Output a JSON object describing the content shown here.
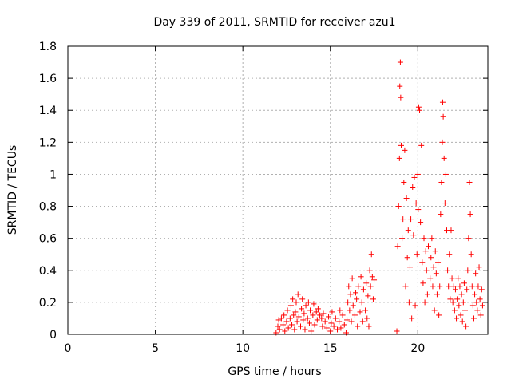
{
  "chart_data": {
    "type": "scatter",
    "title": "Day 339 of 2011, SRMTID for receiver azu1",
    "xlabel": "GPS time / hours",
    "ylabel": "SRMTID / TECUs",
    "xlim": [
      0,
      24
    ],
    "ylim": [
      0,
      1.8
    ],
    "xticks": [
      0,
      5,
      10,
      15,
      20
    ],
    "yticks": [
      0,
      0.2,
      0.4,
      0.6,
      0.8,
      1,
      1.2,
      1.4,
      1.6,
      1.8
    ],
    "ytick_labels": [
      "0",
      "0.2",
      "0.4",
      "0.6",
      "0.8",
      "1",
      "1.2",
      "1.4",
      "1.6",
      "1.8"
    ],
    "grid": true,
    "marker": "+",
    "color": "#ff0000",
    "series": [
      {
        "name": "SRMTID",
        "points": [
          [
            11.9,
            0.01
          ],
          [
            12.0,
            0.05
          ],
          [
            12.05,
            0.09
          ],
          [
            12.1,
            0.03
          ],
          [
            12.2,
            0.1
          ],
          [
            12.3,
            0.06
          ],
          [
            12.35,
            0.12
          ],
          [
            12.4,
            0.02
          ],
          [
            12.5,
            0.08
          ],
          [
            12.55,
            0.15
          ],
          [
            12.6,
            0.04
          ],
          [
            12.7,
            0.1
          ],
          [
            12.75,
            0.18
          ],
          [
            12.8,
            0.06
          ],
          [
            12.85,
            0.22
          ],
          [
            12.9,
            0.12
          ],
          [
            12.95,
            0.03
          ],
          [
            13.0,
            0.14
          ],
          [
            13.05,
            0.2
          ],
          [
            13.1,
            0.08
          ],
          [
            13.15,
            0.25
          ],
          [
            13.2,
            0.11
          ],
          [
            13.3,
            0.05
          ],
          [
            13.35,
            0.16
          ],
          [
            13.4,
            0.22
          ],
          [
            13.45,
            0.09
          ],
          [
            13.5,
            0.13
          ],
          [
            13.55,
            0.03
          ],
          [
            13.6,
            0.18
          ],
          [
            13.7,
            0.1
          ],
          [
            13.75,
            0.2
          ],
          [
            13.8,
            0.07
          ],
          [
            13.85,
            0.15
          ],
          [
            13.9,
            0.02
          ],
          [
            14.0,
            0.12
          ],
          [
            14.05,
            0.19
          ],
          [
            14.1,
            0.06
          ],
          [
            14.2,
            0.14
          ],
          [
            14.25,
            0.09
          ],
          [
            14.3,
            0.16
          ],
          [
            14.4,
            0.12
          ],
          [
            14.5,
            0.1
          ],
          [
            14.55,
            0.05
          ],
          [
            14.6,
            0.13
          ],
          [
            14.7,
            0.08
          ],
          [
            14.8,
            0.04
          ],
          [
            14.9,
            0.11
          ],
          [
            15.0,
            0.02
          ],
          [
            15.05,
            0.07
          ],
          [
            15.1,
            0.14
          ],
          [
            15.2,
            0.05
          ],
          [
            15.3,
            0.1
          ],
          [
            15.4,
            0.03
          ],
          [
            15.5,
            0.08
          ],
          [
            15.55,
            0.15
          ],
          [
            15.6,
            0.04
          ],
          [
            15.7,
            0.12
          ],
          [
            15.8,
            0.06
          ],
          [
            15.9,
            0.01
          ],
          [
            15.95,
            0.09
          ],
          [
            16.0,
            0.2
          ],
          [
            16.05,
            0.3
          ],
          [
            16.1,
            0.15
          ],
          [
            16.15,
            0.25
          ],
          [
            16.2,
            0.08
          ],
          [
            16.25,
            0.35
          ],
          [
            16.3,
            0.18
          ],
          [
            16.4,
            0.12
          ],
          [
            16.45,
            0.26
          ],
          [
            16.5,
            0.22
          ],
          [
            16.55,
            0.05
          ],
          [
            16.6,
            0.3
          ],
          [
            16.7,
            0.14
          ],
          [
            16.75,
            0.36
          ],
          [
            16.8,
            0.2
          ],
          [
            16.85,
            0.08
          ],
          [
            16.9,
            0.28
          ],
          [
            17.0,
            0.15
          ],
          [
            17.05,
            0.32
          ],
          [
            17.1,
            0.1
          ],
          [
            17.15,
            0.24
          ],
          [
            17.2,
            0.05
          ],
          [
            17.25,
            0.4
          ],
          [
            17.3,
            0.3
          ],
          [
            17.35,
            0.5
          ],
          [
            17.4,
            0.36
          ],
          [
            17.45,
            0.22
          ],
          [
            17.5,
            0.34
          ],
          [
            18.8,
            0.02
          ],
          [
            18.85,
            0.55
          ],
          [
            18.9,
            0.8
          ],
          [
            18.95,
            1.1
          ],
          [
            18.97,
            1.55
          ],
          [
            19.0,
            1.7
          ],
          [
            19.02,
            1.48
          ],
          [
            19.05,
            1.18
          ],
          [
            19.1,
            0.6
          ],
          [
            19.15,
            0.72
          ],
          [
            19.2,
            0.95
          ],
          [
            19.25,
            1.15
          ],
          [
            19.3,
            0.3
          ],
          [
            19.35,
            0.85
          ],
          [
            19.4,
            0.48
          ],
          [
            19.45,
            0.65
          ],
          [
            19.5,
            0.2
          ],
          [
            19.55,
            0.42
          ],
          [
            19.6,
            0.72
          ],
          [
            19.65,
            0.1
          ],
          [
            19.7,
            0.92
          ],
          [
            19.75,
            0.62
          ],
          [
            19.8,
            0.98
          ],
          [
            19.85,
            0.18
          ],
          [
            19.9,
            0.82
          ],
          [
            19.95,
            0.5
          ],
          [
            20.0,
            1.0
          ],
          [
            20.02,
            0.78
          ],
          [
            20.05,
            1.42
          ],
          [
            20.1,
            1.4
          ],
          [
            20.15,
            0.7
          ],
          [
            20.2,
            1.18
          ],
          [
            20.25,
            0.45
          ],
          [
            20.3,
            0.32
          ],
          [
            20.35,
            0.6
          ],
          [
            20.4,
            0.2
          ],
          [
            20.45,
            0.52
          ],
          [
            20.5,
            0.4
          ],
          [
            20.55,
            0.25
          ],
          [
            20.6,
            0.55
          ],
          [
            20.7,
            0.35
          ],
          [
            20.75,
            0.48
          ],
          [
            20.8,
            0.6
          ],
          [
            20.85,
            0.3
          ],
          [
            20.9,
            0.42
          ],
          [
            20.95,
            0.15
          ],
          [
            21.0,
            0.52
          ],
          [
            21.05,
            0.38
          ],
          [
            21.1,
            0.25
          ],
          [
            21.15,
            0.45
          ],
          [
            21.2,
            0.12
          ],
          [
            21.25,
            0.3
          ],
          [
            21.3,
            0.75
          ],
          [
            21.35,
            0.95
          ],
          [
            21.4,
            1.2
          ],
          [
            21.42,
            1.45
          ],
          [
            21.45,
            1.36
          ],
          [
            21.5,
            1.1
          ],
          [
            21.55,
            0.82
          ],
          [
            21.6,
            1.0
          ],
          [
            21.65,
            0.65
          ],
          [
            21.7,
            0.4
          ],
          [
            21.75,
            0.3
          ],
          [
            21.8,
            0.5
          ],
          [
            21.85,
            0.22
          ],
          [
            21.9,
            0.65
          ],
          [
            21.95,
            0.35
          ],
          [
            22.0,
            0.2
          ],
          [
            22.05,
            0.3
          ],
          [
            22.1,
            0.15
          ],
          [
            22.15,
            0.28
          ],
          [
            22.2,
            0.1
          ],
          [
            22.25,
            0.22
          ],
          [
            22.3,
            0.35
          ],
          [
            22.35,
            0.18
          ],
          [
            22.4,
            0.3
          ],
          [
            22.45,
            0.12
          ],
          [
            22.5,
            0.25
          ],
          [
            22.55,
            0.08
          ],
          [
            22.6,
            0.2
          ],
          [
            22.65,
            0.32
          ],
          [
            22.7,
            0.15
          ],
          [
            22.75,
            0.05
          ],
          [
            22.8,
            0.28
          ],
          [
            22.85,
            0.4
          ],
          [
            22.9,
            0.6
          ],
          [
            22.95,
            0.95
          ],
          [
            23.0,
            0.75
          ],
          [
            23.05,
            0.5
          ],
          [
            23.1,
            0.3
          ],
          [
            23.15,
            0.18
          ],
          [
            23.2,
            0.1
          ],
          [
            23.25,
            0.25
          ],
          [
            23.3,
            0.38
          ],
          [
            23.35,
            0.2
          ],
          [
            23.4,
            0.15
          ],
          [
            23.45,
            0.3
          ],
          [
            23.5,
            0.42
          ],
          [
            23.55,
            0.22
          ],
          [
            23.6,
            0.12
          ],
          [
            23.65,
            0.28
          ],
          [
            23.7,
            0.18
          ]
        ]
      }
    ]
  }
}
